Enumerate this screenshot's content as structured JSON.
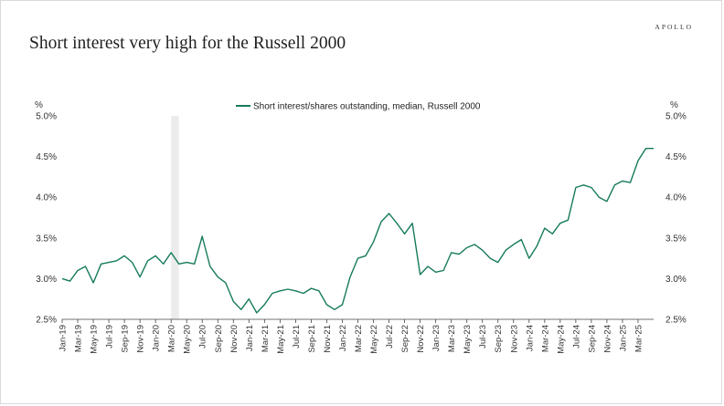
{
  "brand": "APOLLO",
  "title": "Short interest very high for the Russell 2000",
  "chart_data": {
    "type": "line",
    "title": "Short interest very high for the Russell 2000",
    "ylabel_left": "%",
    "ylabel_right": "%",
    "ylim": [
      2.5,
      5.0
    ],
    "yticks": [
      "2.5%",
      "3.0%",
      "3.5%",
      "4.0%",
      "4.5%",
      "5.0%"
    ],
    "xlim": [
      "2019-01",
      "2025-05"
    ],
    "xticks": [
      "Jan-19",
      "Mar-19",
      "May-19",
      "Jul-19",
      "Sep-19",
      "Nov-19",
      "Jan-20",
      "Mar-20",
      "May-20",
      "Jul-20",
      "Sep-20",
      "Nov-20",
      "Jan-21",
      "Mar-21",
      "May-21",
      "Jul-21",
      "Sep-21",
      "Nov-21",
      "Jan-22",
      "Mar-22",
      "May-22",
      "Jul-22",
      "Sep-22",
      "Nov-22",
      "Jan-23",
      "Mar-23",
      "May-23",
      "Jul-23",
      "Sep-23",
      "Nov-23",
      "Jan-24",
      "Mar-24",
      "May-24",
      "Jul-24",
      "Sep-24",
      "Nov-24",
      "Jan-25",
      "Mar-25"
    ],
    "legend": "top-center",
    "grid": false,
    "recession_shading": {
      "start": "2020-03",
      "end": "2020-04"
    },
    "series": [
      {
        "name": "Short interest/shares outstanding, median, Russell 2000",
        "color": "#157a5c",
        "x": [
          "2019-01",
          "2019-02",
          "2019-03",
          "2019-04",
          "2019-05",
          "2019-06",
          "2019-07",
          "2019-08",
          "2019-09",
          "2019-10",
          "2019-11",
          "2019-12",
          "2020-01",
          "2020-02",
          "2020-03",
          "2020-04",
          "2020-05",
          "2020-06",
          "2020-07",
          "2020-08",
          "2020-09",
          "2020-10",
          "2020-11",
          "2020-12",
          "2021-01",
          "2021-02",
          "2021-03",
          "2021-04",
          "2021-05",
          "2021-06",
          "2021-07",
          "2021-08",
          "2021-09",
          "2021-10",
          "2021-11",
          "2021-12",
          "2022-01",
          "2022-02",
          "2022-03",
          "2022-04",
          "2022-05",
          "2022-06",
          "2022-07",
          "2022-08",
          "2022-09",
          "2022-10",
          "2022-11",
          "2022-12",
          "2023-01",
          "2023-02",
          "2023-03",
          "2023-04",
          "2023-05",
          "2023-06",
          "2023-07",
          "2023-08",
          "2023-09",
          "2023-10",
          "2023-11",
          "2023-12",
          "2024-01",
          "2024-02",
          "2024-03",
          "2024-04",
          "2024-05",
          "2024-06",
          "2024-07",
          "2024-08",
          "2024-09",
          "2024-10",
          "2024-11",
          "2024-12",
          "2025-01",
          "2025-02",
          "2025-03",
          "2025-04",
          "2025-05"
        ],
        "values": [
          3.0,
          2.97,
          3.1,
          3.15,
          2.95,
          3.18,
          3.2,
          3.22,
          3.28,
          3.2,
          3.02,
          3.22,
          3.28,
          3.18,
          3.32,
          3.18,
          3.2,
          3.18,
          3.52,
          3.15,
          3.02,
          2.95,
          2.72,
          2.62,
          2.75,
          2.58,
          2.68,
          2.82,
          2.85,
          2.87,
          2.85,
          2.82,
          2.88,
          2.85,
          2.68,
          2.62,
          2.68,
          3.02,
          3.25,
          3.28,
          3.45,
          3.7,
          3.8,
          3.68,
          3.55,
          3.68,
          3.05,
          3.15,
          3.08,
          3.1,
          3.32,
          3.3,
          3.38,
          3.42,
          3.35,
          3.25,
          3.2,
          3.35,
          3.42,
          3.48,
          3.25,
          3.4,
          3.62,
          3.55,
          3.68,
          3.72,
          4.12,
          4.15,
          4.12,
          4.0,
          3.95,
          4.15,
          4.2,
          4.18,
          4.45,
          4.6,
          4.6
        ]
      }
    ]
  }
}
